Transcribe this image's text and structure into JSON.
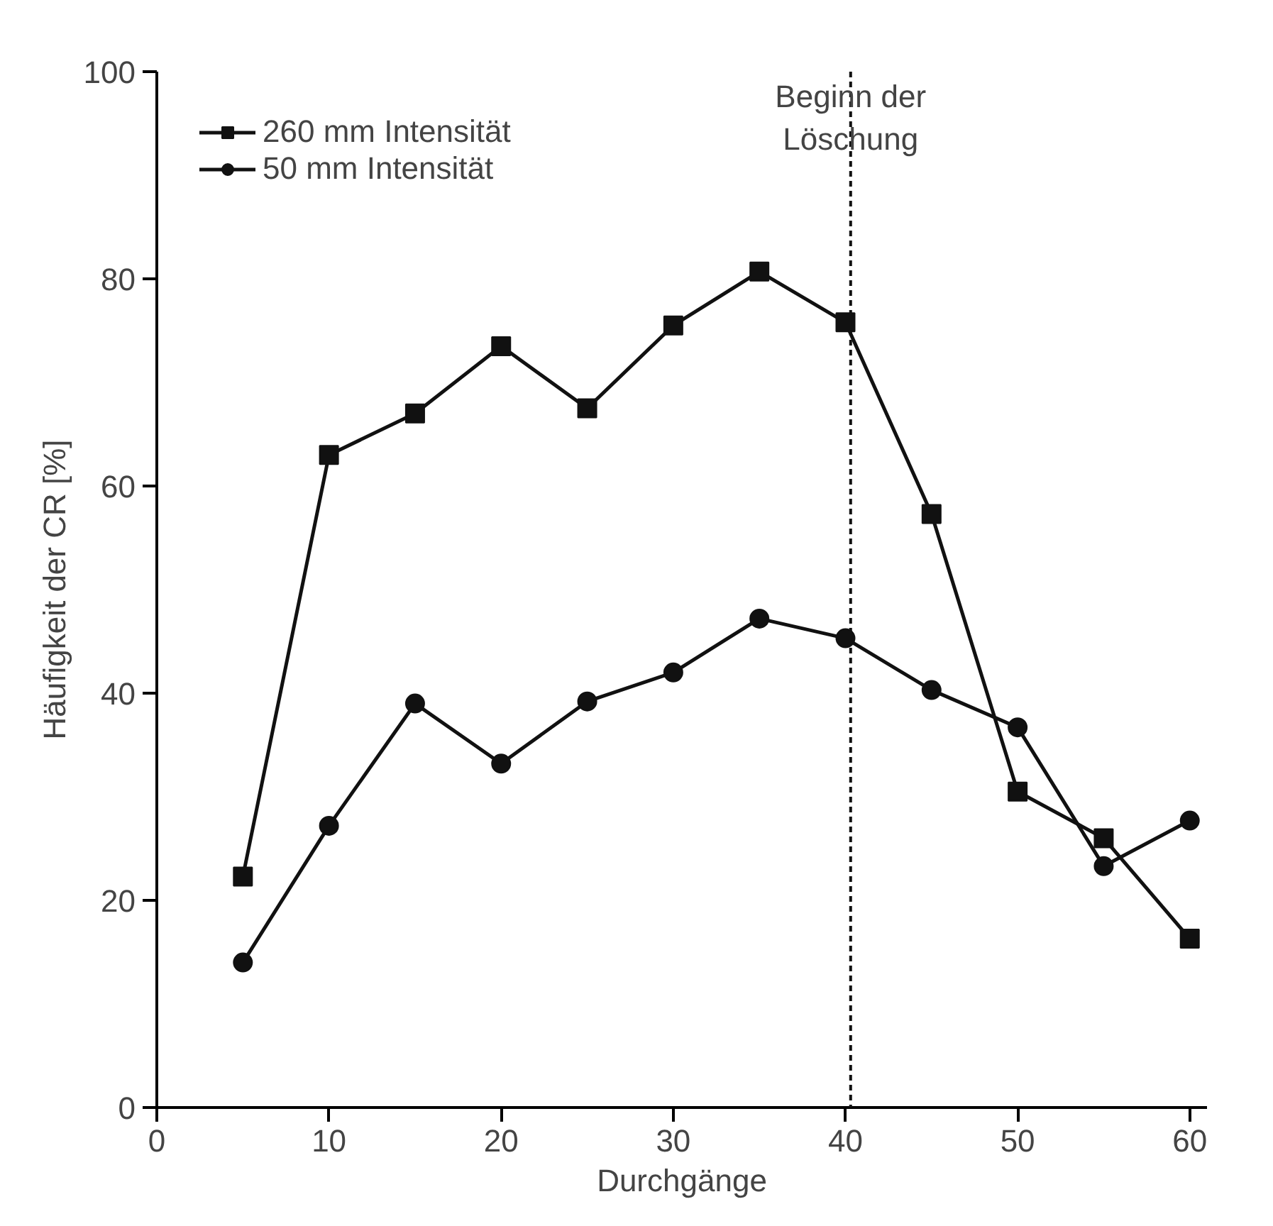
{
  "chart_data": {
    "type": "line",
    "xlabel": "Durchgänge",
    "ylabel": "Häufigkeit der CR [%]",
    "x": [
      5,
      10,
      15,
      20,
      25,
      30,
      35,
      40,
      45,
      50,
      55,
      60
    ],
    "series": [
      {
        "name": "260 mm Intensität",
        "color": "#111111",
        "marker": "square",
        "values": [
          22.3,
          63,
          67,
          73.5,
          67.5,
          75.5,
          80.7,
          75.8,
          57.3,
          30.5,
          26,
          16.3
        ]
      },
      {
        "name": "50 mm Intensität",
        "color": "#111111",
        "marker": "circle",
        "values": [
          14,
          27.2,
          39,
          33.2,
          39.2,
          42,
          47.2,
          45.3,
          40.3,
          36.7,
          23.3,
          27.7
        ]
      }
    ],
    "xlim": [
      0,
      61
    ],
    "ylim": [
      0,
      100
    ],
    "xticks": [
      0,
      10,
      20,
      30,
      40,
      50,
      60
    ],
    "yticks": [
      0,
      20,
      40,
      60,
      80,
      100
    ],
    "ref_lines": [
      {
        "axis": "x",
        "value": 40.3,
        "label": "Beginn der\nLöschung",
        "color": "#111111",
        "line_style": "dashed"
      }
    ],
    "grid": false,
    "legend": "top left",
    "line_style": "solid"
  }
}
